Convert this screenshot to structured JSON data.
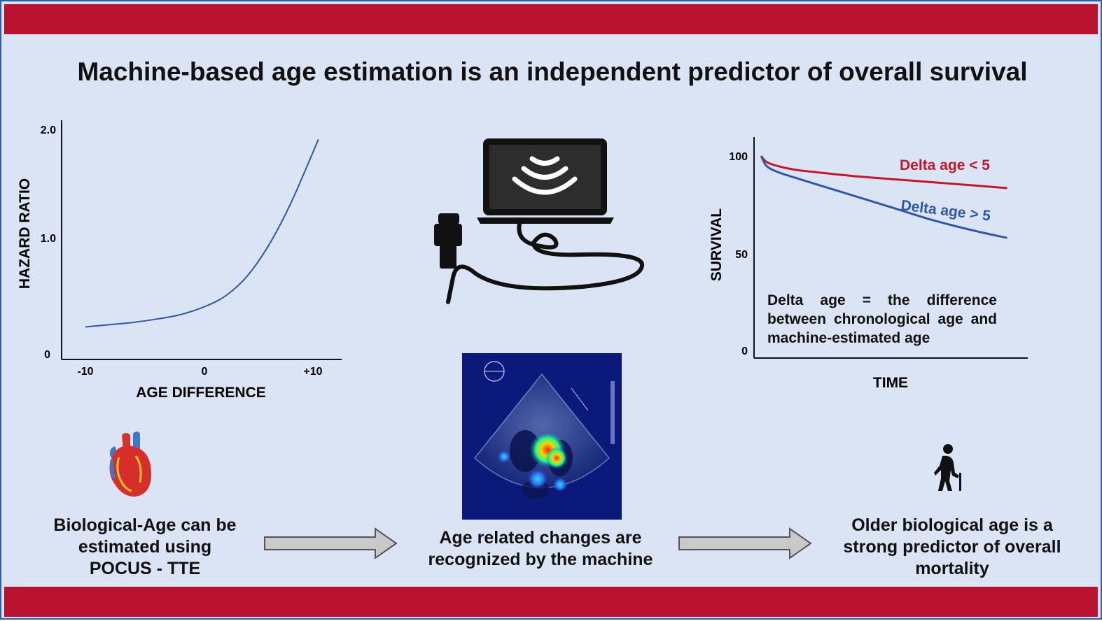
{
  "title": "Machine-based age estimation is an independent predictor of overall survival",
  "colors": {
    "banner": "#b9132f",
    "background": "#dbe4f4",
    "curve_blue": "#2f57a4",
    "curve_red": "#c4162b"
  },
  "icons": [
    "heart-icon",
    "laptop-icon",
    "ultrasound-probe-icon",
    "wireless-waves-icon",
    "elderly-person-icon",
    "arrow-right-icon"
  ],
  "chart_data": [
    {
      "type": "line",
      "xlabel": "AGE DIFFERENCE",
      "ylabel": "HAZARD RATIO",
      "x_ticks": [
        "-10",
        "0",
        "+10"
      ],
      "y_ticks": [
        "0",
        "1.0",
        "2.0"
      ],
      "xlim": [
        -12,
        12
      ],
      "ylim": [
        0,
        2.0
      ],
      "series": [
        {
          "x": [
            -10,
            -8,
            -6,
            -4,
            -2,
            0,
            2,
            4,
            6,
            8,
            10.5
          ],
          "values": [
            0.24,
            0.26,
            0.28,
            0.31,
            0.35,
            0.42,
            0.52,
            0.7,
            0.98,
            1.35,
            1.91
          ]
        }
      ]
    },
    {
      "type": "line",
      "xlabel": "TIME",
      "ylabel": "SURVIVAL",
      "y_ticks": [
        "0",
        "50",
        "100"
      ],
      "ylim": [
        0,
        105
      ],
      "xlim": [
        0,
        1
      ],
      "series": [
        {
          "name": "Delta age < 5",
          "color": "#c4162b",
          "x": [
            0.02,
            0.04,
            0.08,
            0.15,
            0.25,
            0.4,
            0.6,
            0.8,
            0.99
          ],
          "values": [
            100,
            97,
            95,
            93,
            91.5,
            89.5,
            87.5,
            85.5,
            83.5
          ]
        },
        {
          "name": "Delta age > 5",
          "color": "#2f57a4",
          "x": [
            0.02,
            0.04,
            0.08,
            0.15,
            0.25,
            0.4,
            0.55,
            0.7,
            0.85,
            0.99
          ],
          "values": [
            100,
            95,
            92,
            89,
            85,
            79,
            73,
            67,
            62,
            58
          ]
        }
      ]
    }
  ],
  "survival_note": "Delta age = the difference between chronological age and machine-estimated age",
  "captions": {
    "left": [
      "Biological-Age can be",
      "estimated using",
      "POCUS - TTE"
    ],
    "center": [
      "Age related changes are",
      "recognized by the machine"
    ],
    "right": [
      "Older biological age is a",
      "strong predictor of overall",
      "mortality"
    ]
  }
}
